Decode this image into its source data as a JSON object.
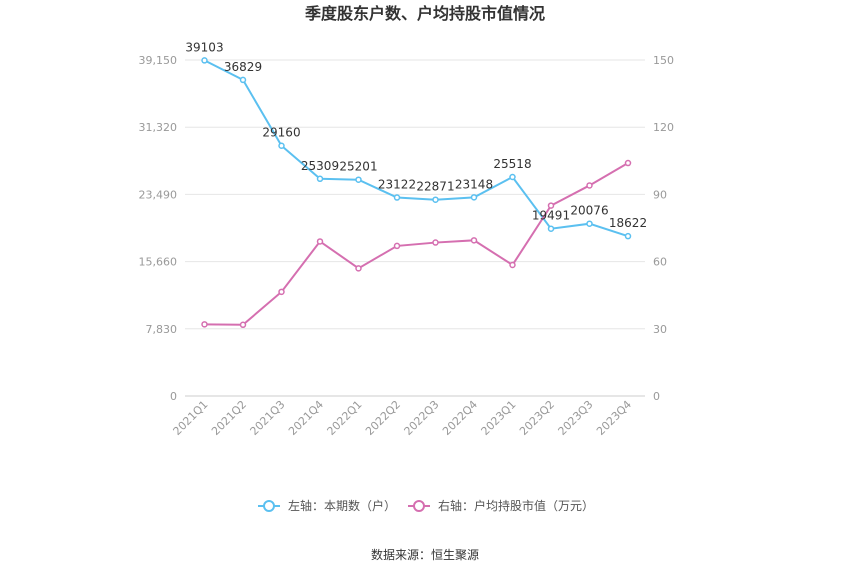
{
  "chart_data": {
    "type": "line",
    "title": "季度股东户数、户均持股市值情况",
    "categories": [
      "2021Q1",
      "2021Q2",
      "2021Q3",
      "2021Q4",
      "2022Q1",
      "2022Q2",
      "2022Q3",
      "2022Q4",
      "2023Q1",
      "2023Q2",
      "2023Q3",
      "2023Q4"
    ],
    "left_axis": {
      "ticks": [
        "0",
        "7,830",
        "15,660",
        "23,490",
        "31,320",
        "39,150"
      ],
      "ylim": [
        0,
        39150
      ]
    },
    "right_axis": {
      "ticks": [
        "0",
        "30",
        "60",
        "90",
        "120",
        "150"
      ],
      "ylim": [
        0,
        150
      ]
    },
    "series": [
      {
        "name": "左轴：本期数（户）",
        "axis": "left",
        "color": "#5bc0f0",
        "values": [
          39103,
          36829,
          29160,
          25309,
          25201,
          23122,
          22871,
          23148,
          25518,
          19491,
          20076,
          18622
        ],
        "labels": [
          "39103",
          "36829",
          "29160",
          "25309",
          "25201",
          "23122",
          "22871",
          "23148",
          "25518",
          "19491",
          "20076",
          "18622"
        ]
      },
      {
        "name": "右轴：户均持股市值（万元）",
        "axis": "right",
        "color": "#d56fb0",
        "values": [
          32,
          31.8,
          46.5,
          69,
          57,
          67,
          68.5,
          69.5,
          58.5,
          85,
          94,
          104
        ]
      }
    ],
    "grid": true,
    "legend_position": "bottom"
  },
  "source": "数据来源：恒生聚源"
}
